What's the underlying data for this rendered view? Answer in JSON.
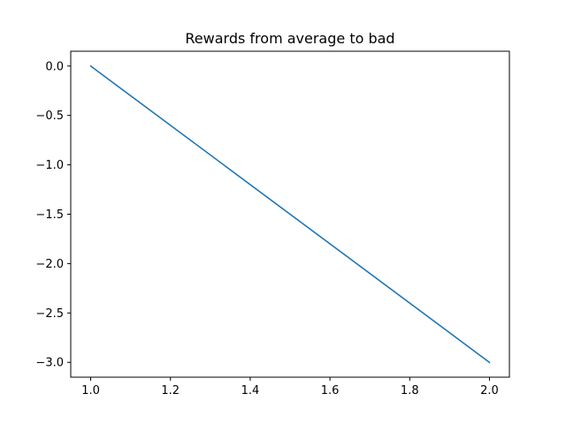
{
  "chart_data": {
    "type": "line",
    "title": "Rewards from average to bad",
    "xlabel": "",
    "ylabel": "",
    "xlim": [
      0.95,
      2.05
    ],
    "ylim": [
      -3.15,
      0.15
    ],
    "x_ticks": [
      1.0,
      1.2,
      1.4,
      1.6,
      1.8,
      2.0
    ],
    "x_tick_labels": [
      "1.0",
      "1.2",
      "1.4",
      "1.6",
      "1.8",
      "2.0"
    ],
    "y_ticks": [
      0.0,
      -0.5,
      -1.0,
      -1.5,
      -2.0,
      -2.5,
      -3.0
    ],
    "y_tick_labels": [
      "0.0",
      "−0.5",
      "−1.0",
      "−1.5",
      "−2.0",
      "−2.5",
      "−3.0"
    ],
    "grid": false,
    "legend": "none",
    "series": [
      {
        "color": "#1f77b4",
        "x": [
          1.0,
          2.0
        ],
        "y": [
          0.0,
          -3.0
        ]
      }
    ]
  }
}
